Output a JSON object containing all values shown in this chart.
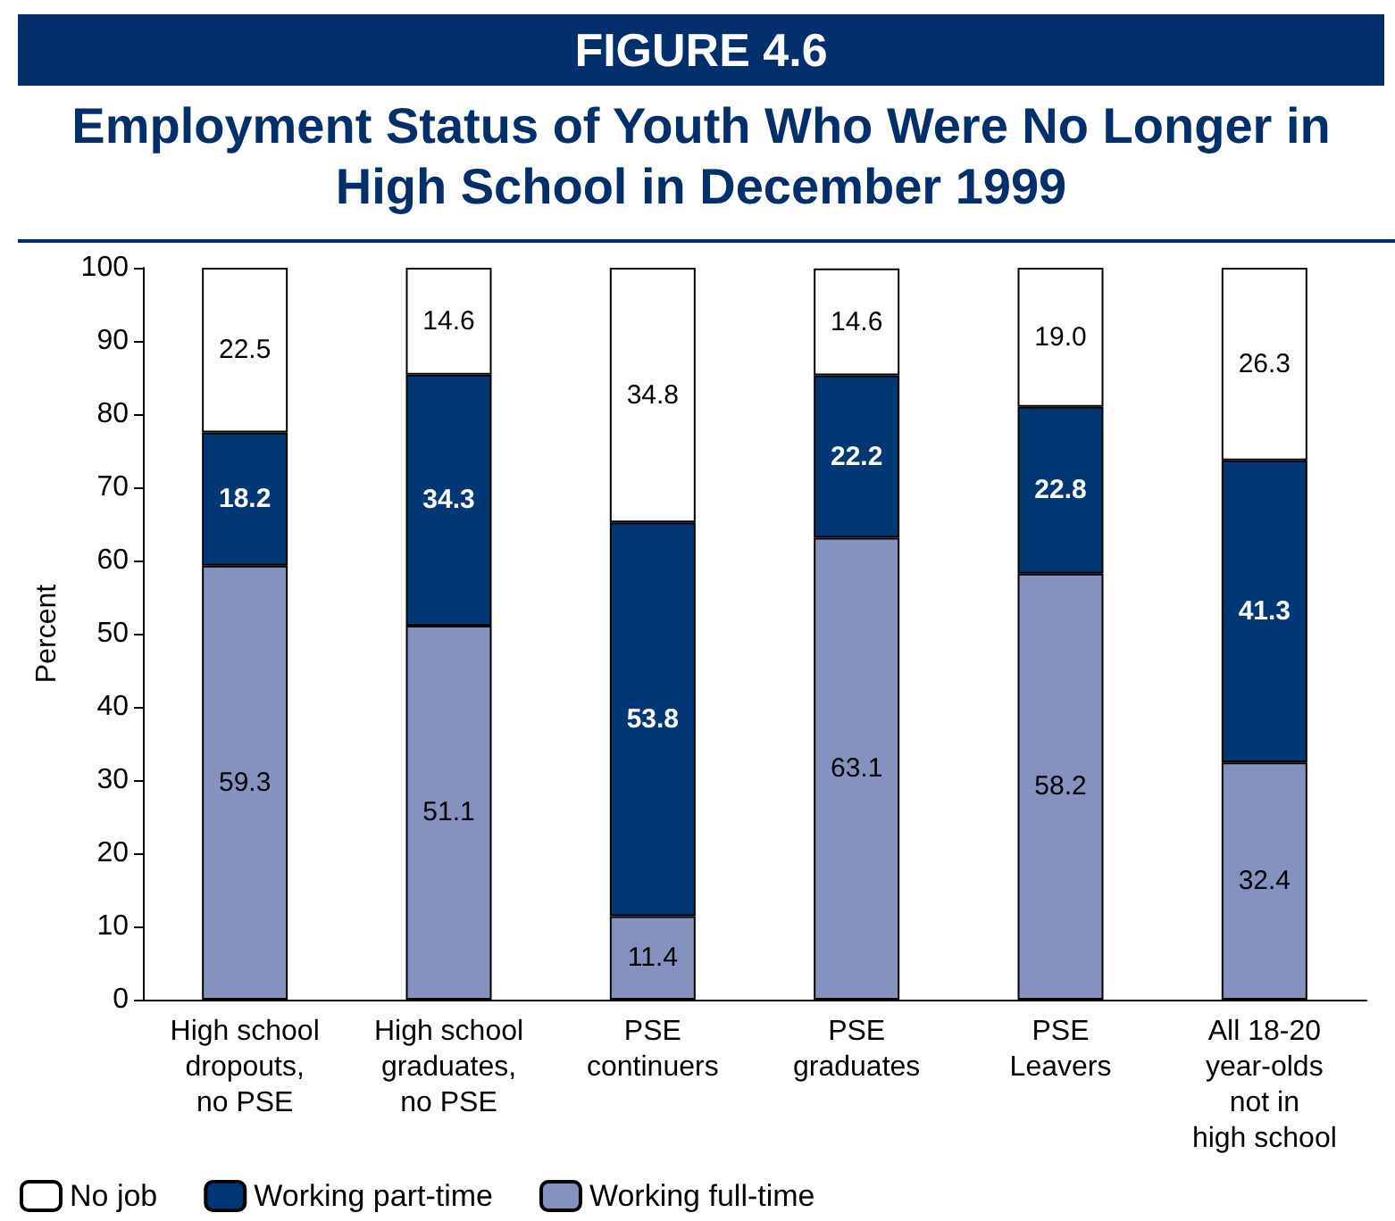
{
  "chart_data": {
    "type": "bar",
    "stacked": true,
    "title": "Employment Status of Youth Who Were No Longer in High School in December 1999",
    "annotations": [
      "FIGURE 4.6"
    ],
    "ylabel": "Percent",
    "categories": [
      "High school\ndropouts,\nno PSE",
      "High school\ngraduates,\nno PSE",
      "PSE\ncontinuers",
      "PSE\ngraduates",
      "PSE\nLeavers",
      "All 18-20\nyear-olds\nnot in\nhigh school"
    ],
    "series": [
      {
        "name": "Working full-time",
        "color": "#8592c0",
        "values": [
          59.3,
          51.1,
          11.4,
          63.1,
          58.2,
          32.4
        ],
        "value_labels": [
          "59.3",
          "51.1",
          "11.4",
          "63.1",
          "58.2",
          "32.4"
        ]
      },
      {
        "name": "Working part-time",
        "color": "#003876",
        "values": [
          18.2,
          34.3,
          53.8,
          22.2,
          22.8,
          41.3
        ],
        "value_labels": [
          "18.2",
          "34.3",
          "53.8",
          "22.2",
          "22.8",
          "41.3"
        ]
      },
      {
        "name": "No job",
        "color": "#ffffff",
        "values": [
          22.5,
          14.6,
          34.8,
          14.6,
          19.0,
          26.3
        ],
        "value_labels": [
          "22.5",
          "14.6",
          "34.8",
          "14.6",
          "19.0",
          "26.3"
        ]
      }
    ],
    "ylim": [
      0,
      100
    ],
    "yticks": [
      0,
      10,
      20,
      30,
      40,
      50,
      60,
      70,
      80,
      90,
      100
    ],
    "grid": false,
    "legend": "bottom left"
  }
}
